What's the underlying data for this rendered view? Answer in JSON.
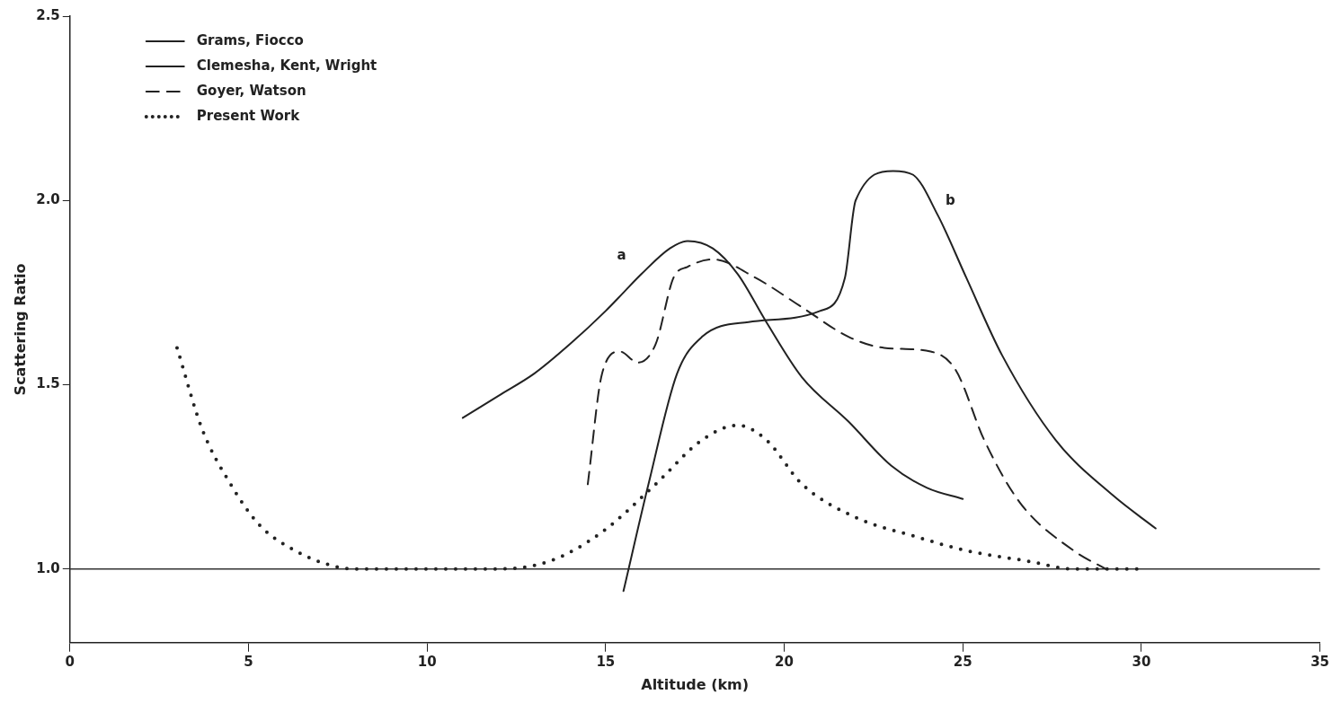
{
  "chart_data": {
    "type": "line",
    "xlabel": "Altitude (km)",
    "ylabel": "Scattering Ratio",
    "xlim": [
      0,
      35
    ],
    "xticks": [
      0,
      5,
      10,
      15,
      20,
      25,
      30,
      35
    ],
    "ylim": [
      0.8,
      2.5
    ],
    "yticks": [
      {
        "value": 1,
        "label": "1.0"
      },
      {
        "value": 1.5,
        "label": "1.5"
      },
      {
        "value": 2,
        "label": "2.0"
      },
      {
        "value": 2.5,
        "label": "2.5"
      }
    ],
    "grid": false,
    "legend": "top left",
    "marker": "none",
    "ref_lines": [
      {
        "axis": "y",
        "value": 1,
        "color": "#333333",
        "line_style": "solid"
      }
    ],
    "annotations": [
      {
        "text": "a",
        "x": 16,
        "y": 1.8
      },
      {
        "text": "b",
        "x": 24.3,
        "y": 1.96
      }
    ],
    "series": [
      {
        "name": "Grams, Fiocco",
        "color": "#222222",
        "line_style": "solid",
        "x": [
          11,
          12,
          13,
          14,
          15,
          15.5,
          16,
          16.8,
          17.3,
          18,
          18.7,
          19.5,
          20.5,
          21.8,
          23,
          24,
          25
        ],
        "values": [
          1.41,
          1.47,
          1.53,
          1.61,
          1.7,
          1.75,
          1.8,
          1.87,
          1.89,
          1.87,
          1.8,
          1.67,
          1.52,
          1.4,
          1.28,
          1.22,
          1.19
        ]
      },
      {
        "name": "Clemesha, Kent, Wright",
        "color": "#222222",
        "line_style": "solid",
        "x": [
          15.5,
          16.2,
          17,
          17.7,
          19,
          21,
          21.7,
          22,
          23.05,
          23.6,
          24.3,
          25.1,
          26.1,
          27.6,
          29.2,
          30.4
        ],
        "values": [
          0.94,
          1.23,
          1.53,
          1.63,
          1.67,
          1.7,
          1.79,
          2,
          2.08,
          2.07,
          1.96,
          1.79,
          1.58,
          1.35,
          1.2,
          1.11
        ]
      },
      {
        "name": "Goyer, Watson",
        "color": "#222222",
        "line_style": "dashed",
        "x": [
          14.5,
          14.9,
          15.4,
          15.9,
          16.4,
          16.9,
          17.3,
          18,
          19.2,
          20.5,
          21.8,
          22.8,
          24.1,
          24.8,
          25.6,
          26.6,
          28.1,
          29
        ],
        "values": [
          1.23,
          1.53,
          1.59,
          1.56,
          1.61,
          1.79,
          1.82,
          1.84,
          1.79,
          1.71,
          1.63,
          1.6,
          1.59,
          1.54,
          1.35,
          1.18,
          1.05,
          1
        ]
      },
      {
        "name": "Present Work",
        "color": "#222222",
        "line_style": "dotted",
        "x": [
          3,
          3.7,
          4.5,
          5.3,
          6.3,
          7.3,
          8,
          11.9,
          13.4,
          14.9,
          16.4,
          17.7,
          18.7,
          19.5,
          20.5,
          22,
          23.6,
          25.1,
          26.9,
          28.1,
          29.9
        ],
        "values": [
          1.6,
          1.38,
          1.23,
          1.12,
          1.05,
          1.01,
          1,
          1,
          1.02,
          1.1,
          1.23,
          1.35,
          1.39,
          1.35,
          1.23,
          1.14,
          1.09,
          1.05,
          1.02,
          1,
          1
        ]
      }
    ]
  }
}
